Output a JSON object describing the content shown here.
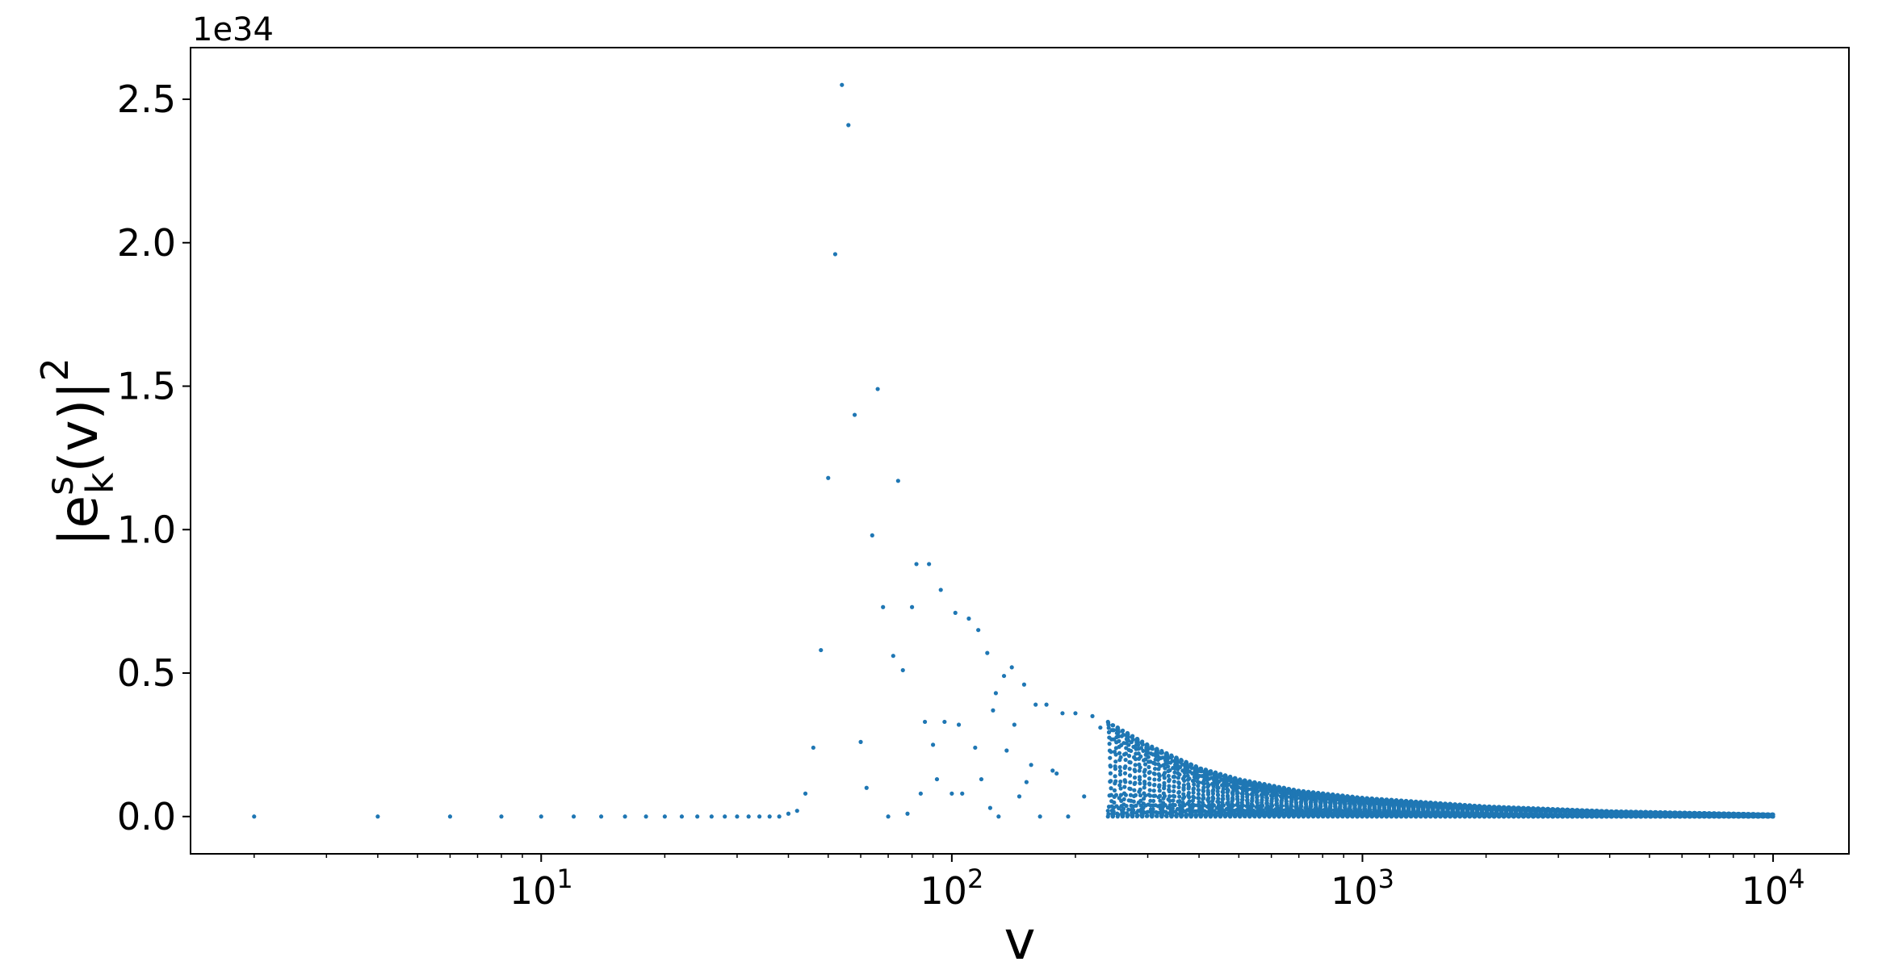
{
  "chart_data": {
    "type": "scatter",
    "title": "",
    "xlabel": "v",
    "ylabel_parts": {
      "base": "|e",
      "sup": "s",
      "sub": "k",
      "arg": "(v)|",
      "power": "2"
    },
    "x_scale": "log",
    "xlim": [
      1.4,
      15300
    ],
    "ylim": [
      -0.13,
      2.68
    ],
    "y_scale_factor_label": "1e34",
    "x_ticks": [
      {
        "value": 10,
        "base": "10",
        "exp": "1"
      },
      {
        "value": 100,
        "base": "10",
        "exp": "2"
      },
      {
        "value": 1000,
        "base": "10",
        "exp": "3"
      },
      {
        "value": 10000,
        "base": "10",
        "exp": "4"
      }
    ],
    "y_ticks": [
      {
        "value": 0.0,
        "label": "0.0"
      },
      {
        "value": 0.5,
        "label": "0.5"
      },
      {
        "value": 1.0,
        "label": "1.0"
      },
      {
        "value": 1.5,
        "label": "1.5"
      },
      {
        "value": 2.0,
        "label": "2.0"
      },
      {
        "value": 2.5,
        "label": "2.5"
      }
    ],
    "grid": false,
    "legend": "none",
    "marker_color": "#1f77b4",
    "series": [
      {
        "points": [
          [
            2,
            0.0
          ],
          [
            4,
            0.0
          ],
          [
            6,
            0.0
          ],
          [
            8,
            0.0
          ],
          [
            10,
            0.0
          ],
          [
            12,
            0.0
          ],
          [
            14,
            0.0
          ],
          [
            16,
            0.0
          ],
          [
            18,
            0.0
          ],
          [
            20,
            0.0
          ],
          [
            22,
            0.0
          ],
          [
            24,
            0.0
          ],
          [
            26,
            0.0
          ],
          [
            28,
            0.0
          ],
          [
            30,
            0.0
          ],
          [
            32,
            0.0
          ],
          [
            34,
            0.0
          ],
          [
            36,
            0.0
          ],
          [
            38,
            0.0
          ],
          [
            40,
            0.01
          ],
          [
            42,
            0.02
          ],
          [
            44,
            0.08
          ],
          [
            46,
            0.24
          ],
          [
            48,
            0.58
          ],
          [
            50,
            1.18
          ],
          [
            52,
            1.96
          ],
          [
            54,
            2.55
          ],
          [
            56,
            2.41
          ],
          [
            58,
            1.4
          ],
          [
            60,
            0.26
          ],
          [
            62,
            0.1
          ],
          [
            64,
            0.98
          ],
          [
            66,
            1.49
          ],
          [
            68,
            0.73
          ],
          [
            70,
            0.0
          ],
          [
            72,
            0.56
          ],
          [
            74,
            1.17
          ],
          [
            76,
            0.51
          ],
          [
            78,
            0.01
          ],
          [
            80,
            0.73
          ],
          [
            82,
            0.88
          ],
          [
            84,
            0.08
          ],
          [
            86,
            0.33
          ],
          [
            88,
            0.88
          ],
          [
            90,
            0.25
          ],
          [
            92,
            0.13
          ],
          [
            94,
            0.79
          ],
          [
            96,
            0.33
          ],
          [
            100,
            0.08
          ],
          [
            102,
            0.71
          ],
          [
            104,
            0.32
          ],
          [
            106,
            0.08
          ],
          [
            110,
            0.69
          ],
          [
            114,
            0.24
          ],
          [
            116,
            0.65
          ],
          [
            118,
            0.13
          ],
          [
            122,
            0.57
          ],
          [
            124,
            0.03
          ],
          [
            126,
            0.37
          ],
          [
            128,
            0.43
          ],
          [
            130,
            0.0
          ],
          [
            134,
            0.49
          ],
          [
            136,
            0.23
          ],
          [
            140,
            0.52
          ],
          [
            142,
            0.32
          ],
          [
            146,
            0.07
          ],
          [
            150,
            0.46
          ],
          [
            152,
            0.12
          ],
          [
            156,
            0.18
          ],
          [
            160,
            0.39
          ],
          [
            164,
            0.0
          ],
          [
            170,
            0.39
          ],
          [
            176,
            0.16
          ],
          [
            180,
            0.15
          ],
          [
            186,
            0.36
          ],
          [
            192,
            0.0
          ],
          [
            200,
            0.36
          ],
          [
            210,
            0.07
          ],
          [
            220,
            0.35
          ],
          [
            230,
            0.31
          ],
          [
            240,
            0.02
          ]
        ]
      }
    ],
    "envelope": {
      "x_start": 240,
      "x_end": 10000,
      "upper": [
        [
          240,
          0.33
        ],
        [
          300,
          0.25
        ],
        [
          400,
          0.17
        ],
        [
          500,
          0.13
        ],
        [
          700,
          0.09
        ],
        [
          1000,
          0.065
        ],
        [
          2000,
          0.035
        ],
        [
          4000,
          0.018
        ],
        [
          10000,
          0.007
        ]
      ],
      "oscillations_per_decade": 42
    }
  }
}
